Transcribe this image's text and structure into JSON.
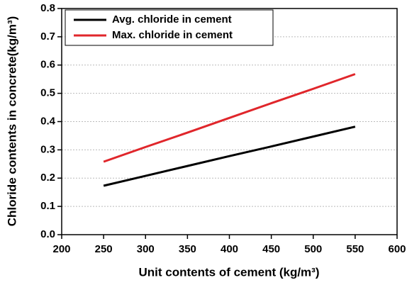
{
  "chart_data": {
    "type": "line",
    "x_label": "Unit contents of cement (kg/m³)",
    "y_label": "Chloride contents in concrete(kg/m³)",
    "x": [
      250,
      300,
      350,
      400,
      450,
      500,
      550
    ],
    "series": [
      {
        "name": "Avg. chloride in cement",
        "color": "#000000",
        "values": [
          0.173,
          0.208,
          0.243,
          0.278,
          0.312,
          0.347,
          0.382
        ]
      },
      {
        "name": "Max. chloride in cement",
        "color": "#e0262b",
        "values": [
          0.258,
          0.31,
          0.361,
          0.413,
          0.465,
          0.516,
          0.568
        ]
      }
    ],
    "xlim": [
      200,
      600
    ],
    "xticks": [
      200,
      250,
      300,
      350,
      400,
      450,
      500,
      550,
      600
    ],
    "ylim": [
      0,
      0.8
    ],
    "yticks": [
      {
        "value": 0,
        "label": "0.0"
      },
      0.1,
      0.2,
      0.3,
      0.4,
      0.5,
      0.6,
      0.7,
      0.8
    ],
    "grid": true,
    "legend": "upper left"
  }
}
